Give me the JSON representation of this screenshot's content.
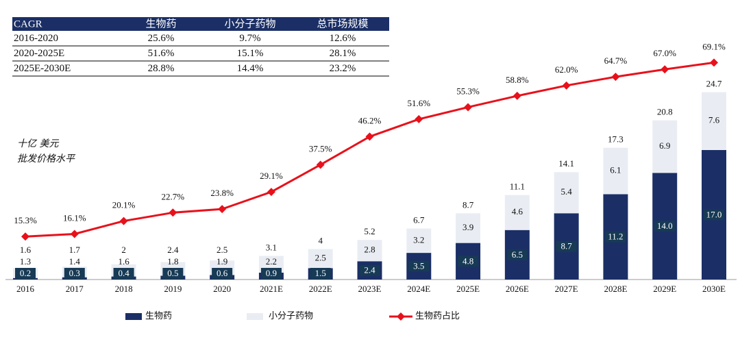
{
  "chart_data": {
    "type": "bar",
    "stacked": true,
    "unit_label": [
      "十亿 美元",
      "批发价格水平"
    ],
    "categories": [
      "2016",
      "2017",
      "2018",
      "2019",
      "2020",
      "2021E",
      "2022E",
      "2023E",
      "2024E",
      "2025E",
      "2026E",
      "2027E",
      "2028E",
      "2029E",
      "2030E"
    ],
    "series": [
      {
        "name": "生物药",
        "color": "#1b2f66",
        "values": [
          0.2,
          0.3,
          0.4,
          0.5,
          0.6,
          0.9,
          1.5,
          2.4,
          3.5,
          4.8,
          6.5,
          8.7,
          11.2,
          14.0,
          17.0
        ],
        "value_labels": [
          "0.2",
          "0.3",
          "0.4",
          "0.5",
          "0.6",
          "0.9",
          "1.5",
          "2.4",
          "3.5",
          "4.8",
          "6.5",
          "8.7",
          "11.2",
          "14.0",
          "17.0"
        ]
      },
      {
        "name": "小分子药物",
        "color": "#e9edf3",
        "values": [
          1.3,
          1.4,
          1.6,
          1.8,
          1.9,
          2.2,
          2.5,
          2.8,
          3.2,
          3.9,
          4.6,
          5.4,
          6.1,
          6.9,
          7.6
        ]
      },
      {
        "name": "生物药占比",
        "color": "#e8111b",
        "type": "line",
        "axis": "y2",
        "values": [
          15.3,
          16.1,
          20.1,
          22.7,
          23.8,
          29.1,
          37.5,
          46.2,
          51.6,
          55.3,
          58.8,
          62.0,
          64.7,
          67.0,
          69.1
        ],
        "value_labels": [
          "15.3%",
          "16.1%",
          "20.1%",
          "22.7%",
          "23.8%",
          "29.1%",
          "37.5%",
          "46.2%",
          "51.6%",
          "55.3%",
          "58.8%",
          "62.0%",
          "64.7%",
          "67.0%",
          "69.1%"
        ]
      }
    ],
    "totals": [
      1.6,
      1.7,
      2.0,
      2.4,
      2.5,
      3.1,
      4.0,
      5.2,
      6.7,
      8.7,
      11.1,
      14.1,
      17.3,
      20.8,
      24.7
    ],
    "ylim": [
      0,
      29.5
    ],
    "y2lim": [
      2,
      71.5
    ],
    "table": {
      "header": [
        "CAGR",
        "生物药",
        "小分子药物",
        "总市场规模"
      ],
      "rows": [
        [
          "2016-2020",
          "25.6%",
          "9.7%",
          "12.6%"
        ],
        [
          "2020-2025E",
          "51.6%",
          "15.1%",
          "28.1%"
        ],
        [
          "2025E-2030E",
          "28.8%",
          "14.4%",
          "23.2%"
        ]
      ]
    }
  }
}
